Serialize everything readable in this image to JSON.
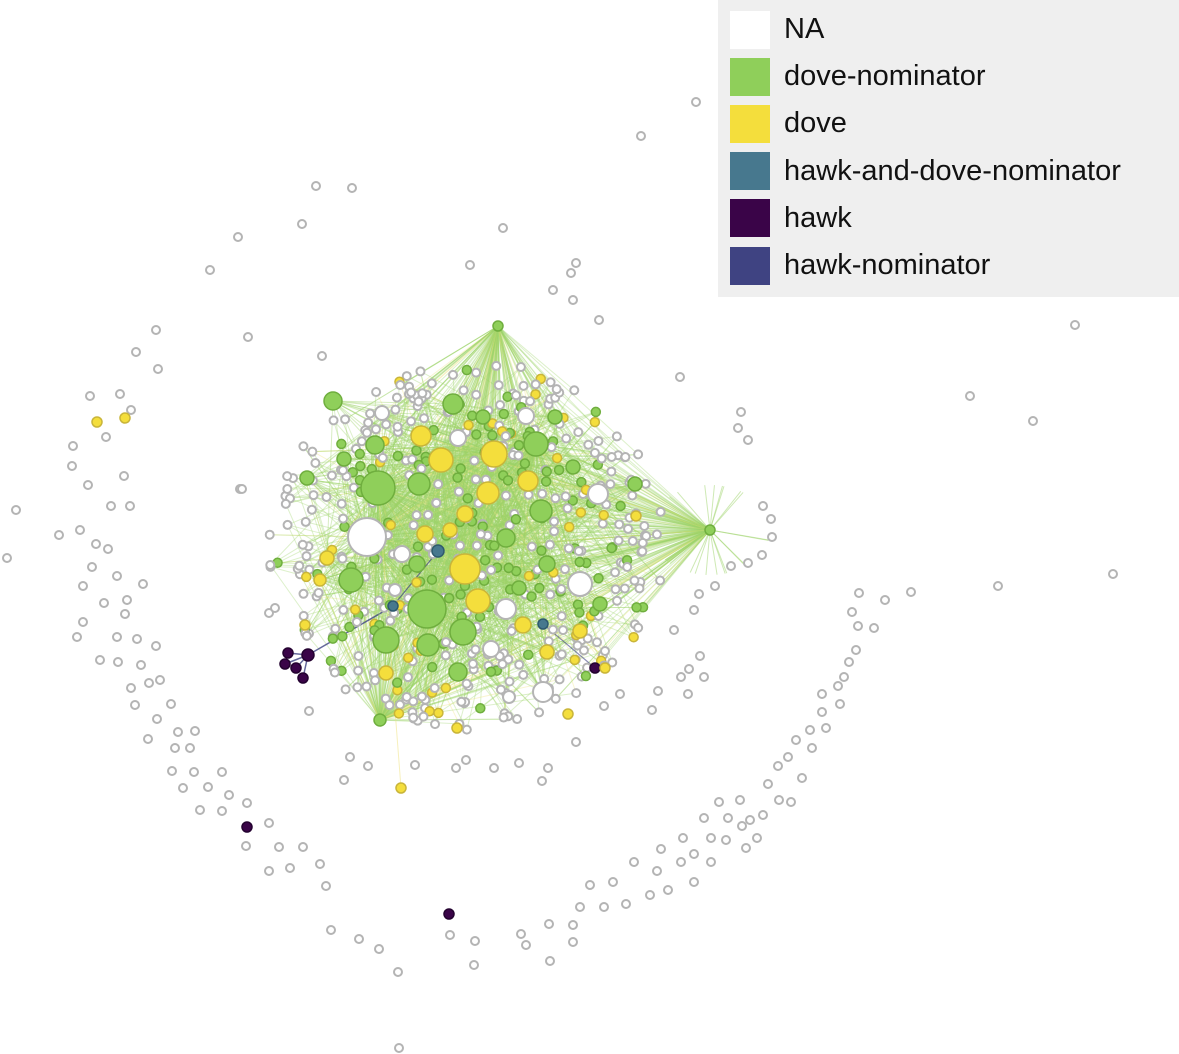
{
  "legend": {
    "items": [
      {
        "key": "na",
        "label": "NA",
        "color": "#ffffff"
      },
      {
        "key": "dove-nominator",
        "label": "dove-nominator",
        "color": "#8fcf5a"
      },
      {
        "key": "dove",
        "label": "dove",
        "color": "#f4de3c"
      },
      {
        "key": "hawk-and-dove-nominator",
        "label": "hawk-and-dove-nominator",
        "color": "#47788e"
      },
      {
        "key": "hawk",
        "label": "hawk",
        "color": "#3a0448"
      },
      {
        "key": "hawk-nominator",
        "label": "hawk-nominator",
        "color": "#3f4382"
      }
    ]
  },
  "colors": {
    "edge_green": "#9ed36a",
    "edge_yellow": "#efe27a",
    "edge_dark": "#3f4382",
    "na_stroke": "#b4b4b4",
    "green_stroke": "#6fae3e",
    "yellow_stroke": "#c9b53a"
  }
}
